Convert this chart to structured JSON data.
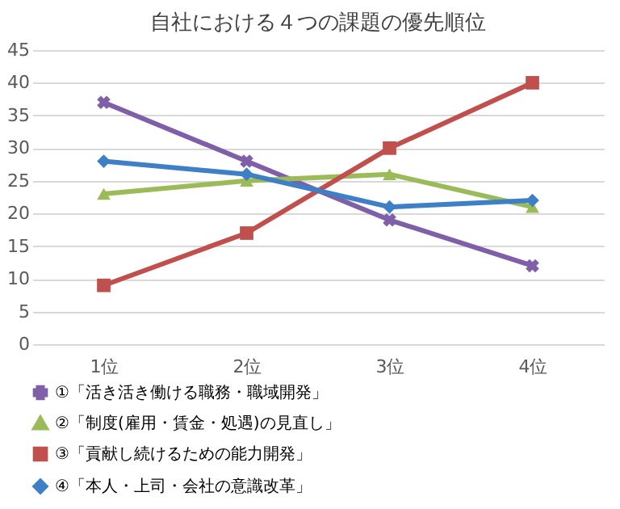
{
  "chart_data": {
    "type": "line",
    "title": "自社における４つの課題の優先順位",
    "categories": [
      "1位",
      "2位",
      "3位",
      "4位"
    ],
    "series": [
      {
        "name": "①「活き活き働ける職務・職域開発」",
        "color": "#7f5fa8",
        "marker": "cross",
        "values": [
          37,
          28,
          19,
          12
        ]
      },
      {
        "name": "②「制度(雇用・賃金・処遇)の見直し」",
        "color": "#9bbb59",
        "marker": "triangle",
        "values": [
          23,
          25,
          26,
          21
        ]
      },
      {
        "name": "③「貢献し続けるための能力開発」",
        "color": "#c0504d",
        "marker": "square",
        "values": [
          9,
          17,
          30,
          40
        ]
      },
      {
        "name": "④「本人・上司・会社の意識改革」",
        "color": "#3f7fc6",
        "marker": "diamond",
        "values": [
          28,
          26,
          21,
          22
        ]
      }
    ],
    "ylim": [
      0,
      45
    ],
    "yticks": [
      0,
      5,
      10,
      15,
      20,
      25,
      30,
      35,
      40,
      45
    ],
    "grid": "y",
    "legend": "bottom"
  }
}
